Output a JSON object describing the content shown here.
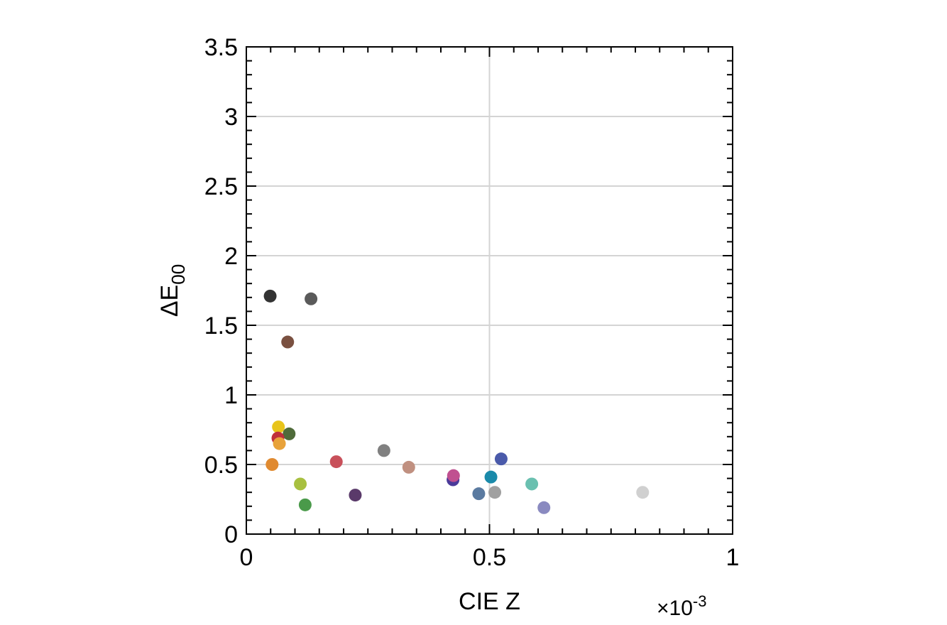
{
  "chart_data": {
    "type": "scatter",
    "xlabel": "CIE Z",
    "ylabel_main": "ΔE",
    "ylabel_sub": "00",
    "exponent_times": "×",
    "exponent_base": "10",
    "exponent_power": "-3",
    "xlim": [
      0,
      1
    ],
    "ylim": [
      0,
      3.5
    ],
    "x_ticks": [
      {
        "value": 0,
        "label": "0"
      },
      {
        "value": 0.5,
        "label": "0.5"
      },
      {
        "value": 1,
        "label": "1"
      }
    ],
    "y_ticks": [
      {
        "value": 0,
        "label": "0"
      },
      {
        "value": 0.5,
        "label": "0.5"
      },
      {
        "value": 1,
        "label": "1"
      },
      {
        "value": 1.5,
        "label": "1.5"
      },
      {
        "value": 2,
        "label": "2"
      },
      {
        "value": 2.5,
        "label": "2.5"
      },
      {
        "value": 3,
        "label": "3"
      },
      {
        "value": 3.5,
        "label": "3.5"
      }
    ],
    "x_minor_step": 0.05,
    "y_minor_step": 0.1,
    "grid_y": [
      0.5,
      1,
      1.5,
      2,
      2.5,
      3
    ],
    "grid_x": [
      0.5
    ],
    "points": [
      {
        "x": 0.049,
        "y": 1.71,
        "color": "#333333"
      },
      {
        "x": 0.133,
        "y": 1.69,
        "color": "#5a5a5a"
      },
      {
        "x": 0.085,
        "y": 1.38,
        "color": "#7a5040"
      },
      {
        "x": 0.066,
        "y": 0.77,
        "color": "#e8c41a"
      },
      {
        "x": 0.088,
        "y": 0.72,
        "color": "#4f6b3a"
      },
      {
        "x": 0.065,
        "y": 0.69,
        "color": "#c0303a"
      },
      {
        "x": 0.068,
        "y": 0.65,
        "color": "#e8a23a"
      },
      {
        "x": 0.053,
        "y": 0.5,
        "color": "#e08a30"
      },
      {
        "x": 0.111,
        "y": 0.36,
        "color": "#a8c040"
      },
      {
        "x": 0.121,
        "y": 0.21,
        "color": "#4a9a4a"
      },
      {
        "x": 0.185,
        "y": 0.52,
        "color": "#c8505a"
      },
      {
        "x": 0.224,
        "y": 0.28,
        "color": "#5a3a6a"
      },
      {
        "x": 0.283,
        "y": 0.6,
        "color": "#808080"
      },
      {
        "x": 0.334,
        "y": 0.48,
        "color": "#c09080"
      },
      {
        "x": 0.425,
        "y": 0.39,
        "color": "#4a3a9a"
      },
      {
        "x": 0.426,
        "y": 0.42,
        "color": "#c05090"
      },
      {
        "x": 0.478,
        "y": 0.29,
        "color": "#5a7aa0"
      },
      {
        "x": 0.503,
        "y": 0.41,
        "color": "#1a8aaa"
      },
      {
        "x": 0.511,
        "y": 0.3,
        "color": "#a0a0a0"
      },
      {
        "x": 0.524,
        "y": 0.54,
        "color": "#4a5aaa"
      },
      {
        "x": 0.587,
        "y": 0.36,
        "color": "#6ac0b0"
      },
      {
        "x": 0.612,
        "y": 0.19,
        "color": "#8a8ac0"
      },
      {
        "x": 0.815,
        "y": 0.3,
        "color": "#d0d0d0"
      }
    ]
  }
}
